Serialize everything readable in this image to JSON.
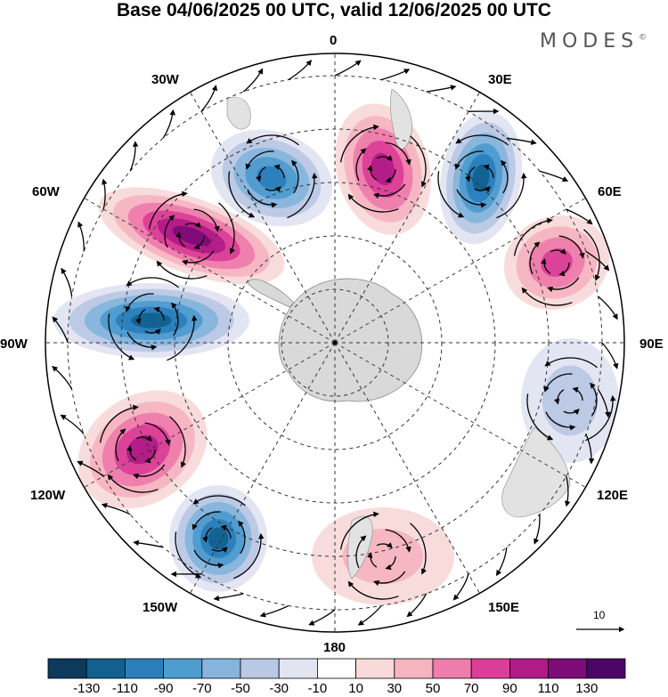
{
  "title": "Base 04/06/2025 00 UTC, valid 12/06/2025 00 UTC",
  "brand": "MODES",
  "brand_mark": "©",
  "longitude_labels": {
    "lon_0": "0",
    "lon_30e": "30E",
    "lon_60e": "60E",
    "lon_90e": "90E",
    "lon_120e": "120E",
    "lon_150e": "150E",
    "lon_180": "180",
    "lon_150w": "150W",
    "lon_120w": "120W",
    "lon_90w": "90W",
    "lon_60w": "60W",
    "lon_30w": "30W"
  },
  "reference_vector_label": "10",
  "colorbar": {
    "ticks": [
      "-130",
      "-110",
      "-90",
      "-70",
      "-50",
      "-30",
      "-10",
      "10",
      "30",
      "50",
      "70",
      "90",
      "110",
      "130"
    ],
    "colors": [
      "#0b3a5c",
      "#11608f",
      "#2a7fba",
      "#4e9ccf",
      "#86b4dc",
      "#b9c8e4",
      "#e3e4f2",
      "#ffffff",
      "#f8dada",
      "#f6b4c1",
      "#ee7cac",
      "#db3e98",
      "#b11b87",
      "#7e0c78",
      "#4b0668"
    ]
  },
  "map": {
    "projection": "south polar stereographic",
    "anomaly_colors": {
      "strong_negative": "#0b3a5c",
      "negative": "#2a7fba",
      "weak_negative": "#b9c8e4",
      "weak_positive": "#f6b4c1",
      "positive": "#db3e98",
      "strong_positive": "#7e0c78",
      "land": "#d9d9d9"
    },
    "anomaly_centers": [
      {
        "sign": "negative",
        "peak": -90,
        "near": "between 30W and 0"
      },
      {
        "sign": "positive",
        "peak": 110,
        "near": "between 0 and 30E"
      },
      {
        "sign": "negative",
        "peak": -110,
        "near": "30E"
      },
      {
        "sign": "positive",
        "peak": 90,
        "near": "60E"
      },
      {
        "sign": "negative",
        "peak": -30,
        "near": "90E-120E"
      },
      {
        "sign": "positive",
        "peak": 50,
        "near": "150E-180"
      },
      {
        "sign": "negative",
        "peak": -110,
        "near": "150W"
      },
      {
        "sign": "positive",
        "peak": 110,
        "near": "120W"
      },
      {
        "sign": "negative",
        "peak": -110,
        "near": "90W"
      },
      {
        "sign": "positive",
        "peak": 130,
        "near": "60W"
      }
    ]
  }
}
